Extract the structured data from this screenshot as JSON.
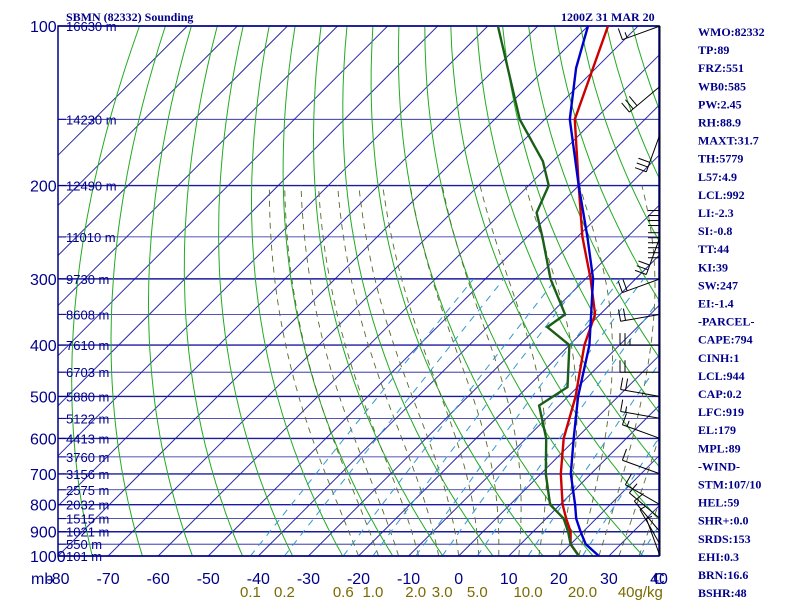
{
  "chart_data": {
    "type": "line",
    "title": "SBMN (82332) Sounding",
    "valid_time": "1200Z 31 MAR 20",
    "axes": {
      "pressure_unit": "mb",
      "pressure_range": [
        1000,
        100
      ],
      "pressure_scale": "log",
      "temperature_range": [
        -80,
        40
      ],
      "temperature_skew": "skewed 45°",
      "grid": true
    },
    "pressure_ticks": [
      "100",
      "200",
      "300",
      "400",
      "500",
      "600",
      "700",
      "800",
      "900",
      "1000"
    ],
    "temperature_ticks": [
      "-80",
      "-70",
      "-60",
      "-50",
      "-40",
      "-30",
      "-20",
      "-10",
      "0",
      "10",
      "20",
      "30",
      "40",
      "C"
    ],
    "height_labels": [
      {
        "p": 100,
        "text": "16630 m"
      },
      {
        "p": 150,
        "text": "14230 m"
      },
      {
        "p": 200,
        "text": "12490 m"
      },
      {
        "p": 250,
        "text": "11010 m"
      },
      {
        "p": 300,
        "text": "9730 m"
      },
      {
        "p": 350,
        "text": "8608 m"
      },
      {
        "p": 400,
        "text": "7610 m"
      },
      {
        "p": 450,
        "text": "6703 m"
      },
      {
        "p": 500,
        "text": "5880 m"
      },
      {
        "p": 550,
        "text": "5122 m"
      },
      {
        "p": 600,
        "text": "4413 m"
      },
      {
        "p": 650,
        "text": "3760 m"
      },
      {
        "p": 700,
        "text": "3156 m"
      },
      {
        "p": 750,
        "text": "2575 m"
      },
      {
        "p": 800,
        "text": "2032 m"
      },
      {
        "p": 850,
        "text": "1515 m"
      },
      {
        "p": 900,
        "text": "1021 m"
      },
      {
        "p": 950,
        "text": "550 m"
      },
      {
        "p": 1000,
        "text": "101 m"
      }
    ],
    "mixing_ratio_labels": [
      "0.1",
      "0.2",
      "0.6",
      "1.0",
      "2.0",
      "3.0",
      "5.0",
      "10.0",
      "20.0",
      "40g/kg"
    ],
    "series": [
      {
        "name": "",
        "color": "#cc0000",
        "points": [
          [
            1000,
            24
          ],
          [
            950,
            20
          ],
          [
            900,
            17.5
          ],
          [
            850,
            14
          ],
          [
            800,
            10.5
          ],
          [
            700,
            4
          ],
          [
            600,
            -2.5
          ],
          [
            500,
            -8.5
          ],
          [
            400,
            -17
          ],
          [
            350,
            -21
          ],
          [
            300,
            -29
          ],
          [
            250,
            -39
          ],
          [
            200,
            -50
          ],
          [
            150,
            -64
          ],
          [
            100,
            -76
          ]
        ]
      },
      {
        "name": "",
        "color": "#1a5e1a",
        "points": [
          [
            1000,
            24
          ],
          [
            950,
            20
          ],
          [
            900,
            17
          ],
          [
            850,
            13.5
          ],
          [
            800,
            8
          ],
          [
            700,
            1
          ],
          [
            600,
            -6
          ],
          [
            520,
            -14
          ],
          [
            480,
            -12
          ],
          [
            400,
            -20
          ],
          [
            370,
            -28
          ],
          [
            350,
            -27
          ],
          [
            300,
            -37
          ],
          [
            250,
            -47
          ],
          [
            225,
            -53
          ],
          [
            200,
            -56
          ],
          [
            180,
            -62
          ],
          [
            150,
            -75
          ],
          [
            100,
            -98
          ]
        ]
      },
      {
        "name": "",
        "color": "#0000cc",
        "points": [
          [
            1000,
            28
          ],
          [
            950,
            23
          ],
          [
            900,
            19.5
          ],
          [
            850,
            16
          ],
          [
            800,
            13
          ],
          [
            700,
            6
          ],
          [
            600,
            -0.5
          ],
          [
            500,
            -8
          ],
          [
            400,
            -16
          ],
          [
            300,
            -28.5
          ],
          [
            250,
            -38
          ],
          [
            200,
            -50
          ],
          [
            150,
            -65
          ],
          [
            120,
            -74
          ],
          [
            100,
            -80
          ]
        ]
      }
    ],
    "wind_barbs": [
      {
        "p": 100,
        "dir": 250,
        "spd": 15
      },
      {
        "p": 130,
        "dir": 230,
        "spd": 30
      },
      {
        "p": 160,
        "dir": 200,
        "spd": 30
      },
      {
        "p": 200,
        "dir": 180,
        "spd": 40
      },
      {
        "p": 230,
        "dir": 180,
        "spd": 60
      },
      {
        "p": 250,
        "dir": 200,
        "spd": 30
      },
      {
        "p": 300,
        "dir": 250,
        "spd": 20
      },
      {
        "p": 350,
        "dir": 260,
        "spd": 20
      },
      {
        "p": 400,
        "dir": 270,
        "spd": 25
      },
      {
        "p": 450,
        "dir": 270,
        "spd": 20
      },
      {
        "p": 500,
        "dir": 280,
        "spd": 20
      },
      {
        "p": 550,
        "dir": 280,
        "spd": 15
      },
      {
        "p": 600,
        "dir": 290,
        "spd": 15
      },
      {
        "p": 700,
        "dir": 290,
        "spd": 10
      },
      {
        "p": 800,
        "dir": 300,
        "spd": 10
      },
      {
        "p": 850,
        "dir": 310,
        "spd": 10
      },
      {
        "p": 900,
        "dir": 320,
        "spd": 10
      },
      {
        "p": 950,
        "dir": 330,
        "spd": 5
      },
      {
        "p": 1000,
        "dir": 340,
        "spd": 5
      }
    ]
  },
  "indices": [
    "WMO:82332",
    "TP:89",
    "FRZ:551",
    "WB0:585",
    "PW:2.45",
    "RH:88.9",
    "MAXT:31.7",
    "TH:5779",
    "L57:4.9",
    "LCL:992",
    "LI:-2.3",
    "SI:-0.8",
    "TT:44",
    "KI:39",
    "SW:247",
    "EI:-1.4",
    "-PARCEL-",
    "CAPE:794",
    "CINH:1",
    "LCL:944",
    "CAP:0.2",
    "LFC:919",
    "EL:179",
    "MPL:89",
    "-WIND-",
    "STM:107/10",
    "HEL:59",
    "SHR+:0.0",
    "SRDS:153",
    "EHI:0.3",
    "BRN:16.6",
    "BSHR:48"
  ],
  "colors": {
    "frame": "#00008b",
    "isobar": "#1a1aa0",
    "isotherm": "#2a2aaa",
    "dry_adiabat": "#22aa22",
    "moist_adiabat": "#556b2f",
    "mixing_ratio": "#3399cc",
    "temperature": "#cc0000",
    "dewpoint": "#1a5e1a",
    "parcel": "#0000cc",
    "wind": "#000000",
    "mixing_label": "#7a6a00"
  }
}
